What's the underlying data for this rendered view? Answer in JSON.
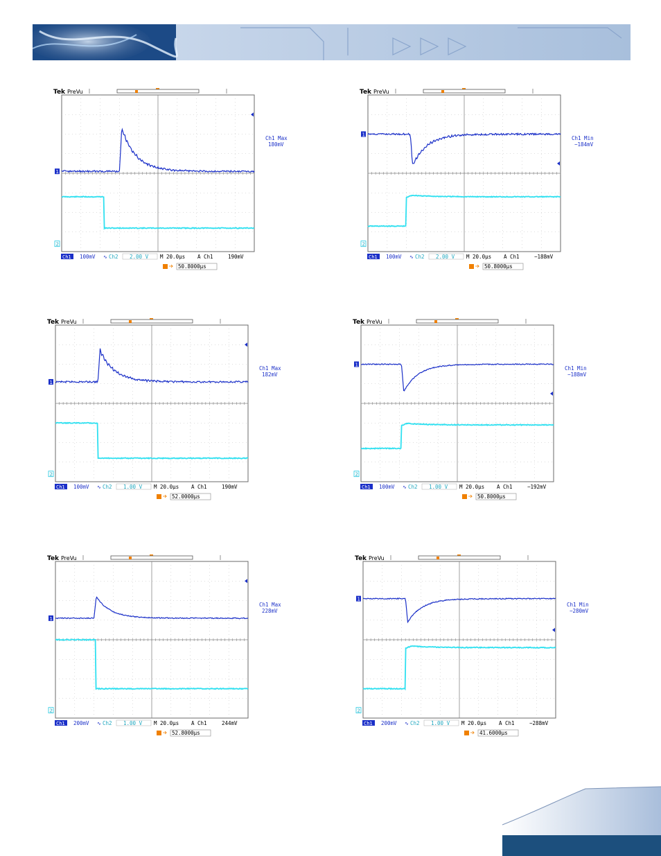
{
  "scopes": [
    {
      "brand": "Tek",
      "mode": "PreVu",
      "ch1": "100mV",
      "ch2": "2.00 V",
      "timebase": "M 20.0µs",
      "trigger_source": "A  Ch1",
      "trigger_level": "190mV",
      "meas_label": "Ch1 Max",
      "meas_value": "180mV",
      "cursor_time": "50.8000µs",
      "ch1_marker": "1",
      "ch2_marker": "2",
      "ch1_box": "Ch1",
      "ch2_box": "Ch2"
    },
    {
      "brand": "Tek",
      "mode": "PreVu",
      "ch1": "100mV",
      "ch2": "2.00 V",
      "timebase": "M 20.0µs",
      "trigger_source": "A  Ch1",
      "trigger_level": "−188mV",
      "meas_label": "Ch1 Min",
      "meas_value": "−184mV",
      "cursor_time": "50.8000µs",
      "ch1_marker": "1",
      "ch2_marker": "2",
      "ch1_box": "Ch1",
      "ch2_box": "Ch2"
    },
    {
      "brand": "Tek",
      "mode": "PreVu",
      "ch1": "100mV",
      "ch2": "1.00 V",
      "timebase": "M 20.0µs",
      "trigger_source": "A  Ch1",
      "trigger_level": "190mV",
      "meas_label": "Ch1 Max",
      "meas_value": "182mV",
      "cursor_time": "52.0000µs",
      "ch1_marker": "1",
      "ch2_marker": "2",
      "ch1_box": "Ch1",
      "ch2_box": "Ch2"
    },
    {
      "brand": "Tek",
      "mode": "PreVu",
      "ch1": "100mV",
      "ch2": "1.00 V",
      "timebase": "M 20.0µs",
      "trigger_source": "A  Ch1",
      "trigger_level": "−192mV",
      "meas_label": "Ch1 Min",
      "meas_value": "−188mV",
      "cursor_time": "50.8000µs",
      "ch1_marker": "1",
      "ch2_marker": "2",
      "ch1_box": "Ch1",
      "ch2_box": "Ch2"
    },
    {
      "brand": "Tek",
      "mode": "PreVu",
      "ch1": "200mV",
      "ch2": "1.00 V",
      "timebase": "M 20.0µs",
      "trigger_source": "A  Ch1",
      "trigger_level": "244mV",
      "meas_label": "Ch1 Max",
      "meas_value": "228mV",
      "cursor_time": "52.8000µs",
      "ch1_marker": "1",
      "ch2_marker": "2",
      "ch1_box": "Ch1",
      "ch2_box": "Ch2"
    },
    {
      "brand": "Tek",
      "mode": "PreVu",
      "ch1": "200mV",
      "ch2": "1.00 V",
      "timebase": "M 20.0µs",
      "trigger_source": "A  Ch1",
      "trigger_level": "−288mV",
      "meas_label": "Ch1 Min",
      "meas_value": "−280mV",
      "cursor_time": "41.6000µs",
      "ch1_marker": "1",
      "ch2_marker": "2",
      "ch1_box": "Ch1",
      "ch2_box": "Ch2"
    }
  ],
  "chart_data": [
    {
      "type": "line",
      "grid": true,
      "x_divisions": 10,
      "y_divisions": 8,
      "series": [
        {
          "name": "Ch1",
          "color": "#1a2fc8",
          "baseline_div": 3.9,
          "step_div": 3.0,
          "kind": "overshoot",
          "peak_div": 1.7,
          "ripple": true
        },
        {
          "name": "Ch2",
          "color": "#2fe0f0",
          "high_div": 5.2,
          "low_div": 6.8,
          "step_div": 2.2,
          "kind": "fall"
        }
      ]
    },
    {
      "type": "line",
      "grid": true,
      "x_divisions": 10,
      "y_divisions": 8,
      "series": [
        {
          "name": "Ch1",
          "color": "#1a2fc8",
          "baseline_div": 2.0,
          "step_div": 2.2,
          "kind": "undershoot",
          "peak_div": 3.6,
          "ripple": true
        },
        {
          "name": "Ch2",
          "color": "#2fe0f0",
          "high_div": 5.2,
          "low_div": 6.7,
          "step_div": 2.0,
          "kind": "rise"
        }
      ]
    },
    {
      "type": "line",
      "grid": true,
      "x_divisions": 10,
      "y_divisions": 8,
      "series": [
        {
          "name": "Ch1",
          "color": "#1a2fc8",
          "baseline_div": 2.9,
          "step_div": 2.2,
          "kind": "overshoot",
          "peak_div": 1.3,
          "ripple": true
        },
        {
          "name": "Ch2",
          "color": "#2fe0f0",
          "high_div": 5.0,
          "low_div": 6.8,
          "step_div": 2.2,
          "kind": "fall"
        }
      ]
    },
    {
      "type": "line",
      "grid": true,
      "x_divisions": 10,
      "y_divisions": 8,
      "series": [
        {
          "name": "Ch1",
          "color": "#1a2fc8",
          "baseline_div": 2.0,
          "step_div": 2.1,
          "kind": "undershoot",
          "peak_div": 3.4,
          "ripple": false
        },
        {
          "name": "Ch2",
          "color": "#2fe0f0",
          "high_div": 5.1,
          "low_div": 6.3,
          "step_div": 2.1,
          "kind": "rise"
        }
      ]
    },
    {
      "type": "line",
      "grid": true,
      "x_divisions": 10,
      "y_divisions": 8,
      "series": [
        {
          "name": "Ch1",
          "color": "#1a2fc8",
          "baseline_div": 2.9,
          "step_div": 2.0,
          "kind": "overshoot",
          "peak_div": 1.8,
          "ripple": false
        },
        {
          "name": "Ch2",
          "color": "#2fe0f0",
          "high_div": 4.0,
          "low_div": 6.5,
          "step_div": 2.1,
          "kind": "fall"
        }
      ]
    },
    {
      "type": "line",
      "grid": true,
      "x_divisions": 10,
      "y_divisions": 8,
      "series": [
        {
          "name": "Ch1",
          "color": "#1a2fc8",
          "baseline_div": 1.9,
          "step_div": 2.2,
          "kind": "undershoot",
          "peak_div": 3.1,
          "ripple": false
        },
        {
          "name": "Ch2",
          "color": "#2fe0f0",
          "high_div": 4.4,
          "low_div": 6.5,
          "step_div": 2.2,
          "kind": "rise"
        }
      ]
    }
  ]
}
